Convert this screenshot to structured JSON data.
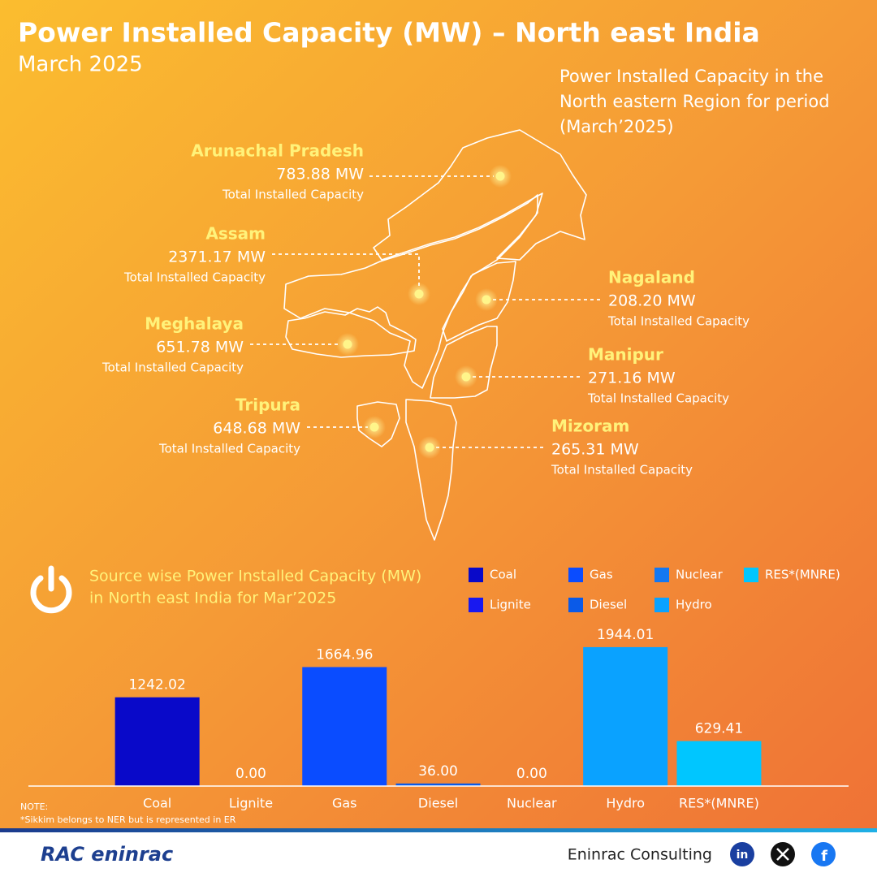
{
  "header": {
    "title": "Power Installed Capacity (MW) – North east India",
    "subtitle": "March 2025"
  },
  "map": {
    "caption": [
      "Power Installed Capacity in the",
      "North eastern Region for period",
      "(March’2025)"
    ],
    "states": [
      {
        "name": "Arunachal Pradesh",
        "capacity": "783.88 MW",
        "note": "Total Installed Capacity"
      },
      {
        "name": "Assam",
        "capacity": "2371.17 MW",
        "note": "Total Installed Capacity"
      },
      {
        "name": "Meghalaya",
        "capacity": "651.78 MW",
        "note": "Total Installed Capacity"
      },
      {
        "name": "Tripura",
        "capacity": "648.68 MW",
        "note": "Total Installed Capacity"
      },
      {
        "name": "Nagaland",
        "capacity": "208.20 MW",
        "note": "Total Installed Capacity"
      },
      {
        "name": "Manipur",
        "capacity": "271.16 MW",
        "note": "Total Installed Capacity"
      },
      {
        "name": "Mizoram",
        "capacity": "265.31 MW",
        "note": "Total Installed Capacity"
      }
    ]
  },
  "chart_data": {
    "type": "bar",
    "title": [
      "Source wise Power Installed Capacity (MW)",
      "in North east India for Mar’2025"
    ],
    "categories": [
      "Coal",
      "Lignite",
      "Gas",
      "Diesel",
      "Nuclear",
      "Hydro",
      "RES*(MNRE)"
    ],
    "values": [
      1242.02,
      0,
      1664.96,
      36,
      0,
      1944.01,
      629.41
    ],
    "value_labels": [
      "1242.02",
      "0.00",
      "1664.96",
      "36.00",
      "0.00",
      "1944.01",
      "629.41"
    ],
    "colors": [
      "#0909c9",
      "#1818f0",
      "#0a4cff",
      "#0a5ae8",
      "#1478f2",
      "#0aa2ff",
      "#00c6ff"
    ],
    "ylim": [
      0,
      2000
    ]
  },
  "note": [
    "NOTE:",
    "*Sikkim belongs to NER but is represented in ER"
  ],
  "footer": {
    "logo": "RAC eninrac",
    "company": "Eninrac Consulting"
  }
}
